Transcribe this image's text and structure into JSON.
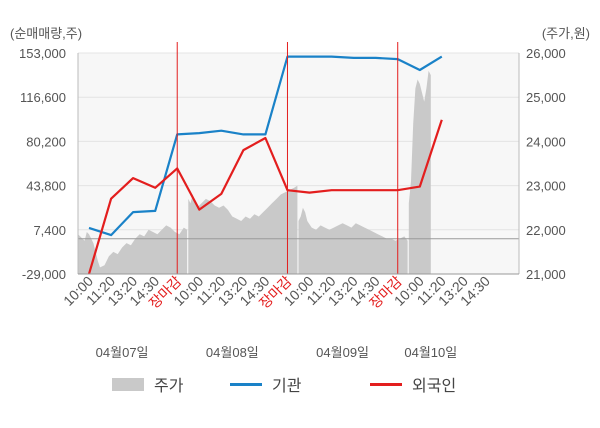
{
  "chart_data": {
    "type": "line",
    "left_axis_unit": "(순매매량,주)",
    "right_axis_unit": "(주가,원)",
    "left_ticks": [
      "153,000",
      "116,600",
      "80,200",
      "43,800",
      "7,400",
      "-29,000"
    ],
    "right_ticks": [
      "26,000",
      "25,000",
      "24,000",
      "23,000",
      "22,000",
      "21,000"
    ],
    "ylim_left": [
      -29000,
      153000
    ],
    "ylim_right": [
      21000,
      26000
    ],
    "reference_line_left": 0,
    "x_slots": 20,
    "x_tick_labels": [
      "10:00",
      "11:20",
      "13:20",
      "14:30",
      "장마감",
      "10:00",
      "11:20",
      "13:20",
      "14:30",
      "장마감",
      "10:00",
      "11:20",
      "13:20",
      "14:30",
      "장마감",
      "10:00",
      "11:20",
      "13:20",
      "14:30"
    ],
    "closing_label": "장마감",
    "date_labels": [
      {
        "label": "04월07일",
        "slot": 2
      },
      {
        "label": "04월08일",
        "slot": 7
      },
      {
        "label": "04월09일",
        "slot": 12
      },
      {
        "label": "04월10일",
        "slot": 16
      }
    ],
    "legend": [
      {
        "name": "주가",
        "color": "#c9c9c9",
        "shape": "box"
      },
      {
        "name": "기관",
        "color": "#1a82c8",
        "shape": "line"
      },
      {
        "name": "외국인",
        "color": "#e31e1e",
        "shape": "line"
      }
    ],
    "series": [
      {
        "name": "주가",
        "axis": "right",
        "color": "#c9c9c9",
        "x": [
          0,
          0.1,
          0.2,
          0.3,
          0.4,
          0.5,
          0.6,
          0.7,
          0.8,
          0.9,
          1.0,
          1.2,
          1.4,
          1.6,
          1.8,
          2.0,
          2.2,
          2.4,
          2.6,
          2.8,
          3.0,
          3.2,
          3.4,
          3.6,
          3.8,
          4.0,
          4.2,
          4.4,
          4.6,
          4.8,
          4.95,
          5.0,
          5.1,
          5.2,
          5.4,
          5.6,
          5.8,
          6.0,
          6.2,
          6.4,
          6.6,
          6.8,
          7.0,
          7.2,
          7.4,
          7.6,
          7.8,
          8.0,
          8.2,
          8.4,
          8.6,
          8.8,
          9.0,
          9.2,
          9.4,
          9.6,
          9.8,
          9.95,
          10.0,
          10.1,
          10.2,
          10.3,
          10.4,
          10.6,
          10.8,
          11.0,
          11.2,
          11.4,
          11.6,
          11.8,
          12.0,
          12.2,
          12.4,
          12.6,
          12.8,
          13.0,
          13.2,
          13.4,
          13.6,
          13.8,
          14.0,
          14.2,
          14.4,
          14.6,
          14.8,
          14.95,
          15.0,
          15.1,
          15.2,
          15.3,
          15.4,
          15.5,
          15.6,
          15.7,
          15.8,
          15.9,
          16.0
        ],
        "values": [
          21900,
          21850,
          21800,
          21750,
          21950,
          21900,
          21800,
          21700,
          21500,
          21300,
          21150,
          21200,
          21400,
          21500,
          21450,
          21600,
          21700,
          21650,
          21800,
          21900,
          21850,
          22000,
          21950,
          21900,
          22000,
          22100,
          22050,
          21950,
          21900,
          22050,
          22000,
          22700,
          22600,
          22800,
          22500,
          22600,
          22700,
          22650,
          22550,
          22500,
          22550,
          22450,
          22300,
          22250,
          22200,
          22300,
          22250,
          22350,
          22300,
          22400,
          22500,
          22600,
          22700,
          22800,
          22850,
          22900,
          22950,
          23000,
          22200,
          22300,
          22500,
          22400,
          22200,
          22050,
          22000,
          22100,
          22050,
          22000,
          22050,
          22100,
          22150,
          22100,
          22050,
          22150,
          22100,
          22050,
          22000,
          21950,
          21900,
          21850,
          21800,
          21800,
          21750,
          21800,
          21850,
          21750,
          22600,
          23100,
          24400,
          25200,
          25400,
          25300,
          25100,
          24900,
          25200,
          25600,
          25500
        ]
      },
      {
        "name": "기관",
        "axis": "left",
        "color": "#1a82c8",
        "x": [
          0.5,
          1.5,
          2.5,
          3.5,
          4.5,
          5.5,
          6.5,
          7.5,
          8.5,
          9.5,
          10.5,
          11.5,
          12.5,
          13.5,
          14.5,
          15.5,
          16.5
        ],
        "values": [
          9000,
          3000,
          22000,
          23000,
          86000,
          87000,
          89000,
          86000,
          86000,
          150000,
          150000,
          150000,
          149000,
          149000,
          148000,
          139000,
          150000
        ]
      },
      {
        "name": "외국인",
        "axis": "left",
        "color": "#e31e1e",
        "x": [
          0.5,
          1.5,
          2.5,
          3.5,
          4.5,
          5.5,
          6.5,
          7.5,
          8.5,
          9.5,
          10.5,
          11.5,
          12.5,
          13.5,
          14.5,
          15.5,
          16.5
        ],
        "values": [
          -29000,
          33000,
          50000,
          42000,
          58000,
          24000,
          37000,
          73000,
          83000,
          40000,
          38000,
          40000,
          40000,
          40000,
          40000,
          43000,
          98000
        ]
      }
    ]
  }
}
